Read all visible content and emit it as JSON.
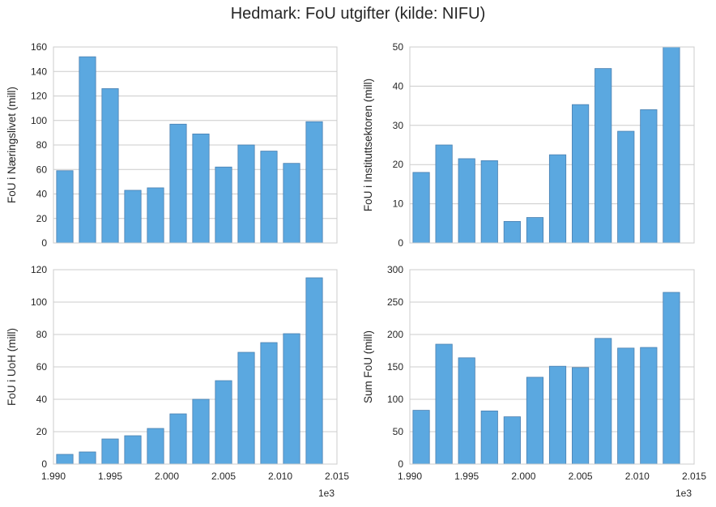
{
  "title": "Hedmark: FoU utgifter (kilde: NIFU)",
  "x_offset_label": "1e3",
  "colors": {
    "bar_fill": "#5ba8e0",
    "bar_edge": "#4a7fb0",
    "grid": "#cccccc",
    "axes_edge": "#cccccc"
  },
  "chart_data": [
    {
      "type": "bar",
      "ylabel": "FoU i Næringslivet (mill)",
      "x": [
        1991,
        1993,
        1995,
        1997,
        1999,
        2001,
        2003,
        2005,
        2007,
        2009,
        2011,
        2013
      ],
      "values": [
        59,
        152,
        126,
        43,
        45,
        97,
        89,
        62,
        80,
        75,
        65,
        99
      ],
      "ylim": [
        0,
        160
      ],
      "yticks": [
        0,
        20,
        40,
        60,
        80,
        100,
        120,
        140,
        160
      ],
      "xlim": [
        1990,
        2015
      ],
      "xticks": [
        1990,
        1995,
        2000,
        2005,
        2010,
        2015
      ],
      "xtick_labels": [],
      "grid": true
    },
    {
      "type": "bar",
      "ylabel": "FoU i Instituttsektoren (mill)",
      "x": [
        1991,
        1993,
        1995,
        1997,
        1999,
        2001,
        2003,
        2005,
        2007,
        2009,
        2011,
        2013
      ],
      "values": [
        18,
        25,
        21.5,
        21,
        5.5,
        6.5,
        22.5,
        35.3,
        44.5,
        28.5,
        34,
        50
      ],
      "ylim": [
        0,
        50
      ],
      "yticks": [
        0,
        10,
        20,
        30,
        40,
        50
      ],
      "xlim": [
        1990,
        2015
      ],
      "xticks": [
        1990,
        1995,
        2000,
        2005,
        2010,
        2015
      ],
      "xtick_labels": [],
      "grid": true
    },
    {
      "type": "bar",
      "ylabel": "FoU i UoH (mill)",
      "x": [
        1991,
        1993,
        1995,
        1997,
        1999,
        2001,
        2003,
        2005,
        2007,
        2009,
        2011,
        2013
      ],
      "values": [
        6,
        7.5,
        15.5,
        17.5,
        22,
        31,
        40,
        51.5,
        69,
        75,
        80.5,
        115
      ],
      "ylim": [
        0,
        120
      ],
      "yticks": [
        0,
        20,
        40,
        60,
        80,
        100,
        120
      ],
      "xlim": [
        1990,
        2015
      ],
      "xticks": [
        1990,
        1995,
        2000,
        2005,
        2010,
        2015
      ],
      "xtick_labels": [
        "1.990",
        "1.995",
        "2.000",
        "2.005",
        "2.010",
        "2.015"
      ],
      "grid": true
    },
    {
      "type": "bar",
      "ylabel": "Sum FoU (mill)",
      "x": [
        1991,
        1993,
        1995,
        1997,
        1999,
        2001,
        2003,
        2005,
        2007,
        2009,
        2011,
        2013
      ],
      "values": [
        83,
        185,
        164,
        82,
        73,
        134,
        151,
        149,
        194,
        179,
        180,
        265
      ],
      "ylim": [
        0,
        300
      ],
      "yticks": [
        0,
        50,
        100,
        150,
        200,
        250,
        300
      ],
      "xlim": [
        1990,
        2015
      ],
      "xticks": [
        1990,
        1995,
        2000,
        2005,
        2010,
        2015
      ],
      "xtick_labels": [
        "1.990",
        "1.995",
        "2.000",
        "2.005",
        "2.010",
        "2.015"
      ],
      "grid": true
    }
  ]
}
